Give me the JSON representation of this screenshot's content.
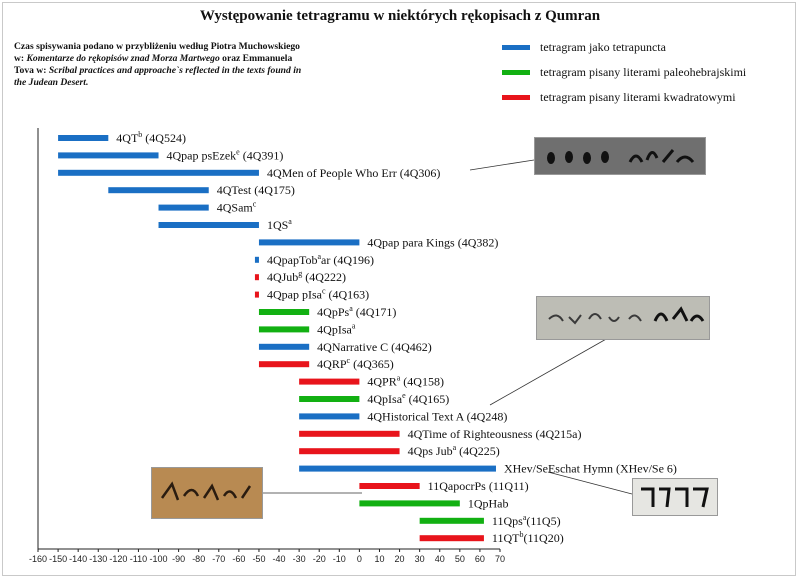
{
  "title": "Występowanie tetragramu w niektórych rękopisach z Qumran",
  "note": {
    "part1": "Czas spisywania podano w przybliżeniu według Piotra Muchowskiego w: ",
    "book": "Komentarze do rękopisów znad Morza Martwego",
    "part2": " oraz Emmanuela Tova w: ",
    "book2": "Scribal practices and approache`s reflected in the texts found in the Judean Desert."
  },
  "legend": [
    {
      "key": "tetrapuncta",
      "label": "tetragram jako tetrapuncta",
      "color": "#1a6fc4"
    },
    {
      "key": "paleo",
      "label": "tetragram pisany literami paleohebrajskimi",
      "color": "#12b012"
    },
    {
      "key": "square",
      "label": "tetragram pisany literami kwadratowymi",
      "color": "#e8141b"
    }
  ],
  "chart_data": {
    "type": "bar",
    "orientation": "horizontal-range",
    "xlim": [
      -160,
      70
    ],
    "x_ticks": [
      -160,
      -150,
      -140,
      -130,
      -120,
      -110,
      -100,
      -90,
      -80,
      -70,
      -60,
      -50,
      -40,
      -30,
      -20,
      -10,
      0,
      10,
      20,
      30,
      40,
      50,
      60,
      70
    ],
    "xlabel": "",
    "ylabel": "",
    "manuscripts": [
      {
        "name": "4QT",
        "sup": "b",
        "suffix": "  (4Q524)",
        "start": -150,
        "end": -125,
        "type": "tetrapuncta"
      },
      {
        "name": "4Qpap psEzek",
        "sup": "e",
        "suffix": " (4Q391)",
        "start": -150,
        "end": -100,
        "type": "tetrapuncta"
      },
      {
        "name": "4QMen of People Who Err (4Q306)",
        "sup": "",
        "suffix": "",
        "start": -150,
        "end": -50,
        "type": "tetrapuncta"
      },
      {
        "name": "4QTest  (4Q175)",
        "sup": "",
        "suffix": "",
        "start": -125,
        "end": -75,
        "type": "tetrapuncta"
      },
      {
        "name": "4QSam",
        "sup": "c",
        "suffix": "",
        "start": -100,
        "end": -75,
        "type": "tetrapuncta"
      },
      {
        "name": "1QS",
        "sup": "a",
        "suffix": "",
        "start": -100,
        "end": -50,
        "type": "tetrapuncta"
      },
      {
        "name": "4Qpap para Kings (4Q382)",
        "sup": "",
        "suffix": "",
        "start": -50,
        "end": 0,
        "type": "tetrapuncta"
      },
      {
        "name": "4QpapTob",
        "sup": "a",
        "suffix": "ar (4Q196)",
        "start": -52,
        "end": -50,
        "type": "tetrapuncta"
      },
      {
        "name": "4QJub",
        "sup": "g",
        "suffix": " (4Q222)",
        "start": -52,
        "end": -50,
        "type": "square"
      },
      {
        "name": "4Qpap pIsa",
        "sup": "c",
        "suffix": " (4Q163)",
        "start": -52,
        "end": -50,
        "type": "square"
      },
      {
        "name": "4QpPs",
        "sup": "a",
        "suffix": " (4Q171)",
        "start": -50,
        "end": -25,
        "type": "paleo"
      },
      {
        "name": "4QpIsa",
        "sup": "a",
        "suffix": "",
        "start": -50,
        "end": -25,
        "type": "paleo"
      },
      {
        "name": "4QNarrative C  (4Q462)",
        "sup": "",
        "suffix": "",
        "start": -50,
        "end": -25,
        "type": "tetrapuncta"
      },
      {
        "name": "4QRP",
        "sup": "c",
        "suffix": " (4Q365)",
        "start": -50,
        "end": -25,
        "type": "square"
      },
      {
        "name": "4QPR",
        "sup": "a",
        "suffix": " (4Q158)",
        "start": -30,
        "end": 0,
        "type": "square"
      },
      {
        "name": "4QpIsa",
        "sup": "e",
        "suffix": " (4Q165)",
        "start": -30,
        "end": 0,
        "type": "paleo"
      },
      {
        "name": "4QHistorical Text A (4Q248)",
        "sup": "",
        "suffix": "",
        "start": -30,
        "end": 0,
        "type": "tetrapuncta"
      },
      {
        "name": "4QTime of Righteousness (4Q215a)",
        "sup": "",
        "suffix": "",
        "start": -30,
        "end": 20,
        "type": "square"
      },
      {
        "name": "4Qps Jub",
        "sup": "a",
        "suffix": " (4Q225)",
        "start": -30,
        "end": 20,
        "type": "square"
      },
      {
        "name": "XHev/SeEschat Hymn (XHev/Se 6)",
        "sup": "",
        "suffix": "",
        "start": -30,
        "end": 68,
        "type": "tetrapuncta"
      },
      {
        "name": "11QapocrPs (11Q11)",
        "sup": "",
        "suffix": "",
        "start": 0,
        "end": 30,
        "type": "square"
      },
      {
        "name": "1QpHab",
        "sup": "",
        "suffix": "",
        "start": 0,
        "end": 50,
        "type": "paleo"
      },
      {
        "name": "11Qps",
        "sup": "a",
        "suffix": "(11Q5)",
        "start": 30,
        "end": 62,
        "type": "paleo"
      },
      {
        "name": "11QT",
        "sup": "b",
        "suffix": "(11Q20)",
        "start": 30,
        "end": 62,
        "type": "square"
      }
    ]
  },
  "photos": [
    {
      "name": "photo-4q306-fragment",
      "color": "#6f6f6f"
    },
    {
      "name": "photo-paleo-script-fragment",
      "color": "#bdbdb5"
    },
    {
      "name": "photo-1qphab-fragment",
      "color": "#b88a52"
    },
    {
      "name": "photo-square-script-fragment",
      "color": "#e6e6e2"
    }
  ]
}
